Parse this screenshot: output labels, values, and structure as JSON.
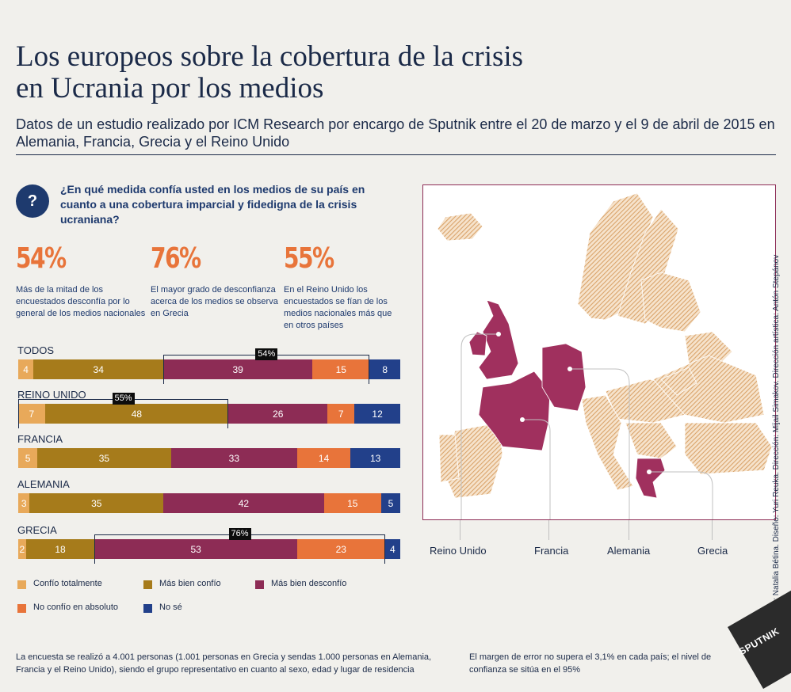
{
  "header": {
    "title_line1": "Los europeos sobre la cobertura de la crisis",
    "title_line2": "en Ucrania por los medios",
    "subtitle": "Datos de un estudio realizado por ICM Research por encargo de Sputnik entre el 20 de marzo y el 9 de abril de 2015 en Alemania, Francia, Grecia y el Reino Unido"
  },
  "question": {
    "icon": "?",
    "text": "¿En qué medida confía usted en los medios de su país en cuanto a una cobertura imparcial y fidedigna de la crisis ucraniana?"
  },
  "stats": [
    {
      "value": "54%",
      "desc": "Más de la mitad de los encuestados desconfía por lo general de los medios nacionales"
    },
    {
      "value": "76%",
      "desc": "El mayor grado de desconfianza acerca de los medios se observa en Grecia"
    },
    {
      "value": "55%",
      "desc": "En el Reino Unido los encuestados se fían de los medios nacionales más que en otros países"
    }
  ],
  "colors": {
    "totalmente": "#e8a95a",
    "mas_bien_confio": "#a67b1b",
    "mas_bien_desconfio": "#8d2c55",
    "no_confio": "#e8743a",
    "no_se": "#22408a",
    "map_highlight": "#a0305e",
    "map_hatch": "#d9a36a"
  },
  "chart_data": {
    "type": "bar",
    "orientation": "horizontal-stacked-100",
    "categories": [
      "TODOS",
      "REINO UNIDO",
      "FRANCIA",
      "ALEMANIA",
      "GRECIA"
    ],
    "series": [
      {
        "name": "Confío totalmente",
        "values": [
          4,
          7,
          5,
          3,
          2
        ]
      },
      {
        "name": "Más bien confío",
        "values": [
          34,
          48,
          35,
          35,
          18
        ]
      },
      {
        "name": "Más bien desconfío",
        "values": [
          39,
          26,
          33,
          42,
          53
        ]
      },
      {
        "name": "No confío en absoluto",
        "values": [
          15,
          7,
          14,
          15,
          23
        ]
      },
      {
        "name": "No sé",
        "values": [
          8,
          12,
          13,
          5,
          4
        ]
      }
    ],
    "highlights": [
      {
        "category": "TODOS",
        "label": "54%",
        "from_series": 2,
        "to_series": 3
      },
      {
        "category": "REINO UNIDO",
        "label": "55%",
        "from_series": 0,
        "to_series": 1
      },
      {
        "category": "GRECIA",
        "label": "76%",
        "from_series": 2,
        "to_series": 3
      }
    ],
    "unit": "%"
  },
  "map": {
    "labels": [
      "Reino Unido",
      "Francia",
      "Alemania",
      "Grecia"
    ]
  },
  "credits": "Redacción: Natalia Bétina. Diseño: Yuri Reuka. Dirección: Mijail Simakov. Dirección artística: Antón Stepánov",
  "footnotes": {
    "left": "La encuesta se realizó a 4.001 personas (1.001 personas en Grecia y sendas 1.000 personas en Alemania, Francia y el Reino Unido), siendo el grupo representativo en cuanto al sexo, edad y lugar de residencia",
    "right": "El margen de error no supera el 3,1% en cada país; el nivel de confianza se sitúa en el 95%"
  },
  "logo_text": "SPUTNIK"
}
